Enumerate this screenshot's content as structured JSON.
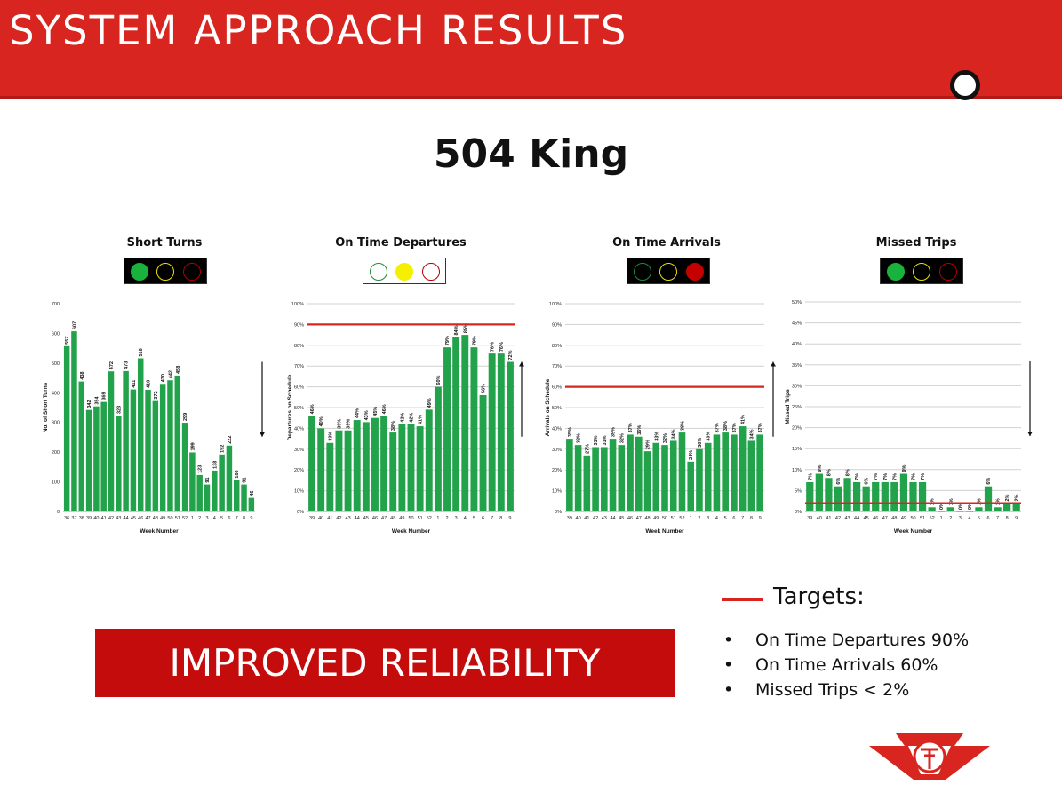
{
  "header": {
    "title": "SYSTEM APPROACH RESULTS"
  },
  "route_title": "504 King",
  "banner": "IMPROVED RELIABILITY",
  "targets": {
    "heading": "Targets:",
    "items": [
      "On Time Departures 90%",
      "On Time Arrivals 60%",
      "Missed Trips < 2%"
    ]
  },
  "colors": {
    "red": "#d9251f",
    "bar": "#22a24a",
    "lamp_green": "#18b23c",
    "lamp_yellow": "#f5ef00",
    "lamp_red": "#c40000",
    "lamp_off_green": "#1f8a3a",
    "lamp_off_yellow": "#e8e200",
    "lamp_off_red": "#b00000"
  },
  "panels": [
    {
      "title": "Short Turns",
      "lights": {
        "background": "black",
        "active": "green"
      }
    },
    {
      "title": "On Time Departures",
      "lights": {
        "background": "white",
        "active": "yellow"
      }
    },
    {
      "title": "On Time Arrivals",
      "lights": {
        "background": "black",
        "active": "red"
      }
    },
    {
      "title": "Missed Trips",
      "lights": {
        "background": "black",
        "active": "green"
      }
    }
  ],
  "chart_data": [
    {
      "type": "bar",
      "title": "Short Turns",
      "xlabel": "Week Number",
      "ylabel": "No. of Short Turns",
      "ylim": [
        0,
        700
      ],
      "yticks": [
        "0",
        "100",
        "200",
        "300",
        "400",
        "500",
        "600",
        "700"
      ],
      "grid": false,
      "categories": [
        "36",
        "37",
        "38",
        "39",
        "40",
        "41",
        "42",
        "43",
        "44",
        "45",
        "46",
        "47",
        "48",
        "49",
        "50",
        "51",
        "52",
        "1",
        "2",
        "3",
        "4",
        "5",
        "6",
        "7",
        "8",
        "9"
      ],
      "values": [
        557,
        607,
        438,
        342,
        354,
        369,
        472,
        323,
        473,
        411,
        516,
        410,
        372,
        430,
        442,
        458,
        299,
        199,
        123,
        91,
        138,
        192,
        222,
        106,
        91,
        46
      ],
      "labels": [
        "557",
        "607",
        "438",
        "342",
        "354",
        "369",
        "472",
        "323",
        "473",
        "411",
        "516",
        "410",
        "372",
        "430",
        "442",
        "458",
        "299",
        "199",
        "123",
        "91",
        "138",
        "192",
        "222",
        "106",
        "91",
        "46"
      ],
      "trend_arrow": "down"
    },
    {
      "type": "bar",
      "title": "On Time Departures",
      "xlabel": "Week Number",
      "ylabel": "Departures on Schedule",
      "ylim": [
        0,
        100
      ],
      "yticks": [
        "0%",
        "10%",
        "20%",
        "30%",
        "40%",
        "50%",
        "60%",
        "70%",
        "80%",
        "90%",
        "100%"
      ],
      "grid": true,
      "target": 90,
      "categories": [
        "39",
        "40",
        "41",
        "42",
        "43",
        "44",
        "45",
        "46",
        "47",
        "48",
        "49",
        "50",
        "51",
        "52",
        "1",
        "2",
        "3",
        "4",
        "5",
        "6",
        "7",
        "8",
        "9"
      ],
      "values": [
        46,
        40,
        33,
        39,
        39,
        44,
        43,
        45,
        46,
        38,
        42,
        42,
        41,
        49,
        60,
        79,
        84,
        85,
        79,
        56,
        76,
        76,
        72
      ],
      "labels": [
        "46%",
        "40%",
        "33%",
        "39%",
        "39%",
        "44%",
        "43%",
        "45%",
        "46%",
        "38%",
        "42%",
        "42%",
        "41%",
        "49%",
        "60%",
        "79%",
        "84%",
        "85%",
        "79%",
        "56%",
        "76%",
        "76%",
        "72%"
      ],
      "trend_arrow": "up"
    },
    {
      "type": "bar",
      "title": "On Time Arrivals",
      "xlabel": "Week Number",
      "ylabel": "Arrivals on Schedule",
      "ylim": [
        0,
        100
      ],
      "yticks": [
        "0%",
        "10%",
        "20%",
        "30%",
        "40%",
        "50%",
        "60%",
        "70%",
        "80%",
        "90%",
        "100%"
      ],
      "grid": true,
      "target": 60,
      "categories": [
        "39",
        "40",
        "41",
        "42",
        "43",
        "44",
        "45",
        "46",
        "47",
        "48",
        "49",
        "50",
        "51",
        "52",
        "1",
        "2",
        "3",
        "4",
        "5",
        "6",
        "7",
        "8",
        "9"
      ],
      "values": [
        35,
        32,
        27,
        31,
        31,
        35,
        32,
        37,
        36,
        29,
        33,
        32,
        34,
        38,
        24,
        30,
        33,
        37,
        38,
        37,
        41,
        34,
        37
      ],
      "labels": [
        "35%",
        "32%",
        "27%",
        "31%",
        "31%",
        "35%",
        "32%",
        "37%",
        "36%",
        "29%",
        "33%",
        "32%",
        "34%",
        "38%",
        "24%",
        "30%",
        "33%",
        "37%",
        "38%",
        "37%",
        "41%",
        "34%",
        "37%"
      ],
      "trend_arrow": "up"
    },
    {
      "type": "bar",
      "title": "Missed Trips",
      "xlabel": "Week Number",
      "ylabel": "Missed Trips",
      "ylim": [
        0,
        50
      ],
      "yticks": [
        "0%",
        "5%",
        "10%",
        "15%",
        "20%",
        "25%",
        "30%",
        "35%",
        "40%",
        "45%",
        "50%"
      ],
      "grid": true,
      "target": 2,
      "categories": [
        "39",
        "40",
        "41",
        "42",
        "43",
        "44",
        "45",
        "46",
        "47",
        "48",
        "49",
        "50",
        "51",
        "52",
        "1",
        "2",
        "3",
        "4",
        "5",
        "6",
        "7",
        "8",
        "9"
      ],
      "values": [
        7,
        9,
        8,
        6,
        8,
        7,
        6,
        7,
        7,
        7,
        9,
        7,
        7,
        1,
        0,
        1,
        0,
        0,
        1,
        6,
        1,
        2,
        2
      ],
      "labels": [
        "7%",
        "9%",
        "8%",
        "6%",
        "8%",
        "7%",
        "6%",
        "7%",
        "7%",
        "7%",
        "9%",
        "7%",
        "7%",
        "1%",
        "0%",
        "1%",
        "0%",
        "0%",
        "1%",
        "6%",
        "1%",
        "2%",
        "2%"
      ],
      "trend_arrow": "down"
    }
  ]
}
